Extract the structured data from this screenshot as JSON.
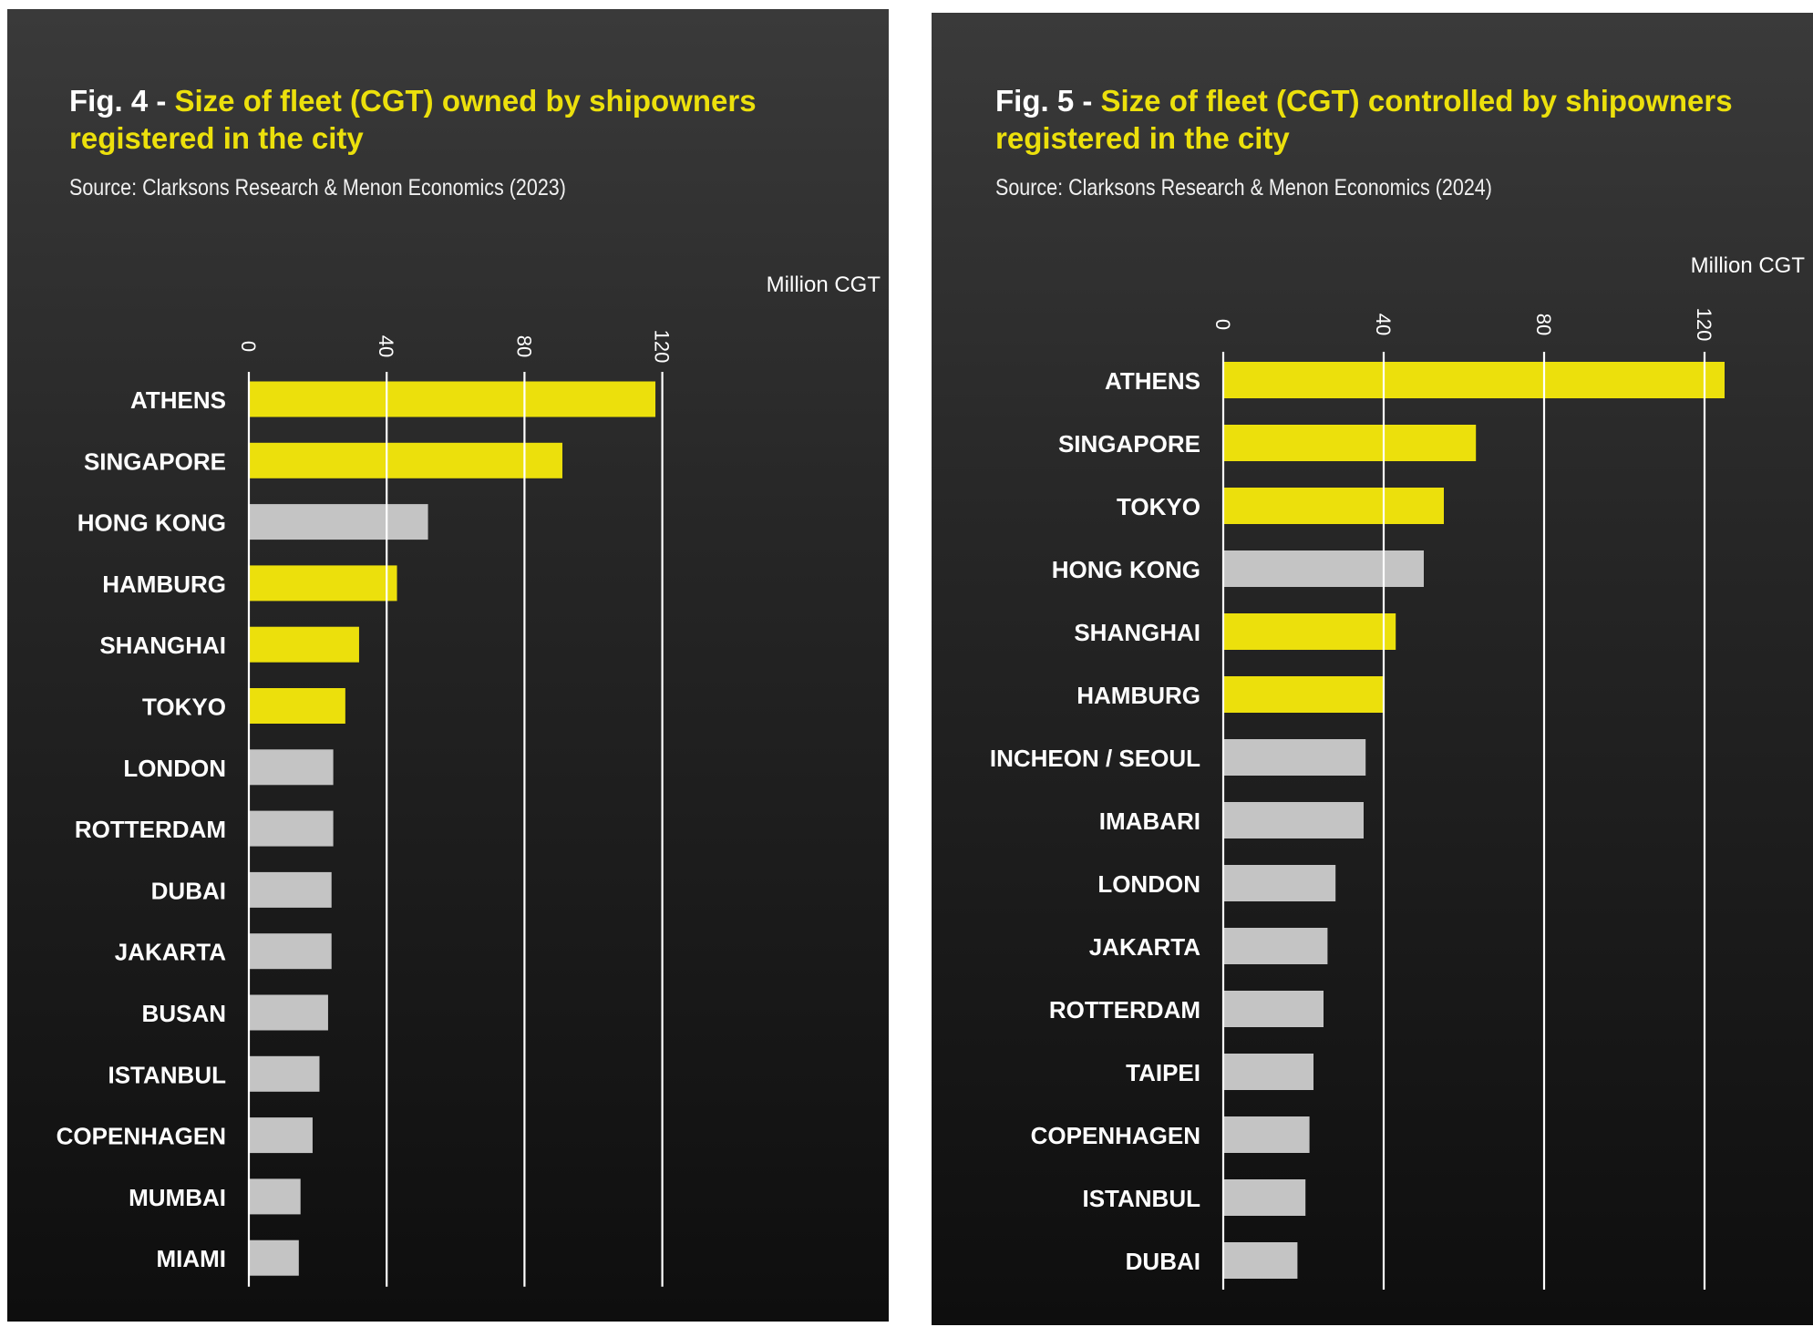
{
  "chart_data": [
    {
      "type": "bar",
      "orientation": "horizontal",
      "fig_label": "Fig. 4 - ",
      "title": "Size of fleet (CGT) owned by shipowners registered in the city",
      "title_lines": [
        "Size of fleet (CGT) owned by shipowners",
        "registered in the city"
      ],
      "subtitle": "Source: Clarksons Research & Menon Economics (2023)",
      "xlabel": "Million CGT",
      "xlim": [
        0,
        130
      ],
      "xticks": [
        0,
        40,
        80,
        120
      ],
      "grid": true,
      "categories": [
        "ATHENS",
        "SINGAPORE",
        "HONG KONG",
        "HAMBURG",
        "SHANGHAI",
        "TOKYO",
        "LONDON",
        "ROTTERDAM",
        "DUBAI",
        "JAKARTA",
        "BUSAN",
        "ISTANBUL",
        "COPENHAGEN",
        "MUMBAI",
        "MIAMI"
      ],
      "values": [
        118,
        91,
        52,
        43,
        32,
        28,
        24.5,
        24.5,
        24,
        24,
        23,
        20.5,
        18.5,
        15,
        14.5
      ],
      "highlighted": [
        true,
        true,
        false,
        true,
        true,
        true,
        false,
        false,
        false,
        false,
        false,
        false,
        false,
        false,
        false
      ]
    },
    {
      "type": "bar",
      "orientation": "horizontal",
      "fig_label": "Fig. 5 - ",
      "title": "Size of fleet (CGT) controlled by shipowners registered in the city",
      "title_lines": [
        "Size of fleet (CGT) controlled by shipowners",
        "registered in the city"
      ],
      "subtitle": "Source: Clarksons Research & Menon Economics (2024)",
      "xlabel": "Million CGT",
      "xlim": [
        0,
        145
      ],
      "xticks": [
        0,
        40,
        80,
        120
      ],
      "grid": true,
      "categories": [
        "ATHENS",
        "SINGAPORE",
        "TOKYO",
        "HONG KONG",
        "SHANGHAI",
        "HAMBURG",
        "INCHEON / SEOUL",
        "IMABARI",
        "LONDON",
        "JAKARTA",
        "ROTTERDAM",
        "TAIPEI",
        "COPENHAGEN",
        "ISTANBUL",
        "DUBAI"
      ],
      "values": [
        125,
        63,
        55,
        50,
        43,
        40,
        35.5,
        35,
        28,
        26,
        25,
        22.5,
        21.5,
        20.5,
        18.5
      ],
      "highlighted": [
        true,
        true,
        true,
        false,
        true,
        true,
        false,
        false,
        false,
        false,
        false,
        false,
        false,
        false,
        false
      ]
    }
  ],
  "colors": {
    "highlight": "#ece00c",
    "neutral": "#c4c4c4",
    "text": "#ffffff",
    "grid": "#ffffff"
  }
}
